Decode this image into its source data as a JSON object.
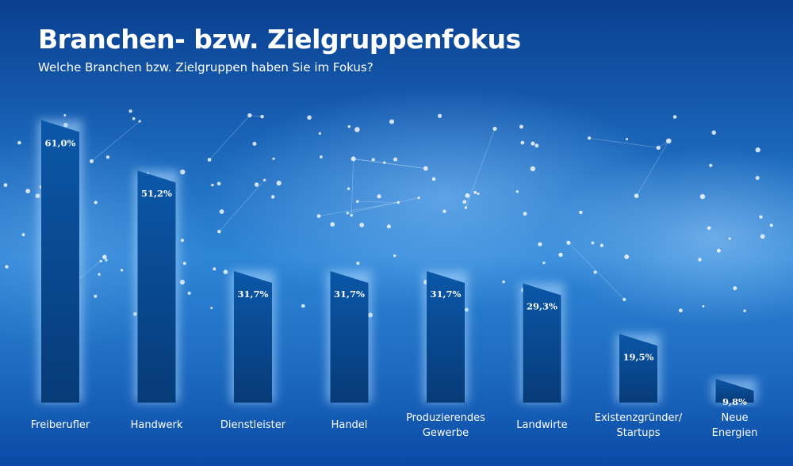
{
  "chart_data": {
    "type": "bar",
    "title": "Branchen- bzw. Zielgruppenfokus",
    "subtitle": "Welche Branchen bzw. Zielgruppen haben Sie im Fokus?",
    "categories": [
      [
        "Freiberufler"
      ],
      [
        "Handwerk"
      ],
      [
        "Dienstleister"
      ],
      [
        "Handel"
      ],
      [
        "Produzierendes",
        "Gewerbe"
      ],
      [
        "Landwirte"
      ],
      [
        "Existenzgründer/",
        "Startups"
      ],
      [
        "Neue",
        "Energien"
      ]
    ],
    "values": [
      61.0,
      51.2,
      31.7,
      31.7,
      31.7,
      29.3,
      19.5,
      9.8
    ],
    "value_labels": [
      "61,0%",
      "51,2%",
      "31,7%",
      "31,7%",
      "31,7%",
      "29,3%",
      "19,5%",
      "9,8%"
    ],
    "xlabel": "",
    "ylabel": "",
    "ylim": [
      0,
      65
    ],
    "grid": false,
    "colors": {
      "bar_top": "#0b57a8",
      "bar_bottom": "#073b78"
    }
  }
}
